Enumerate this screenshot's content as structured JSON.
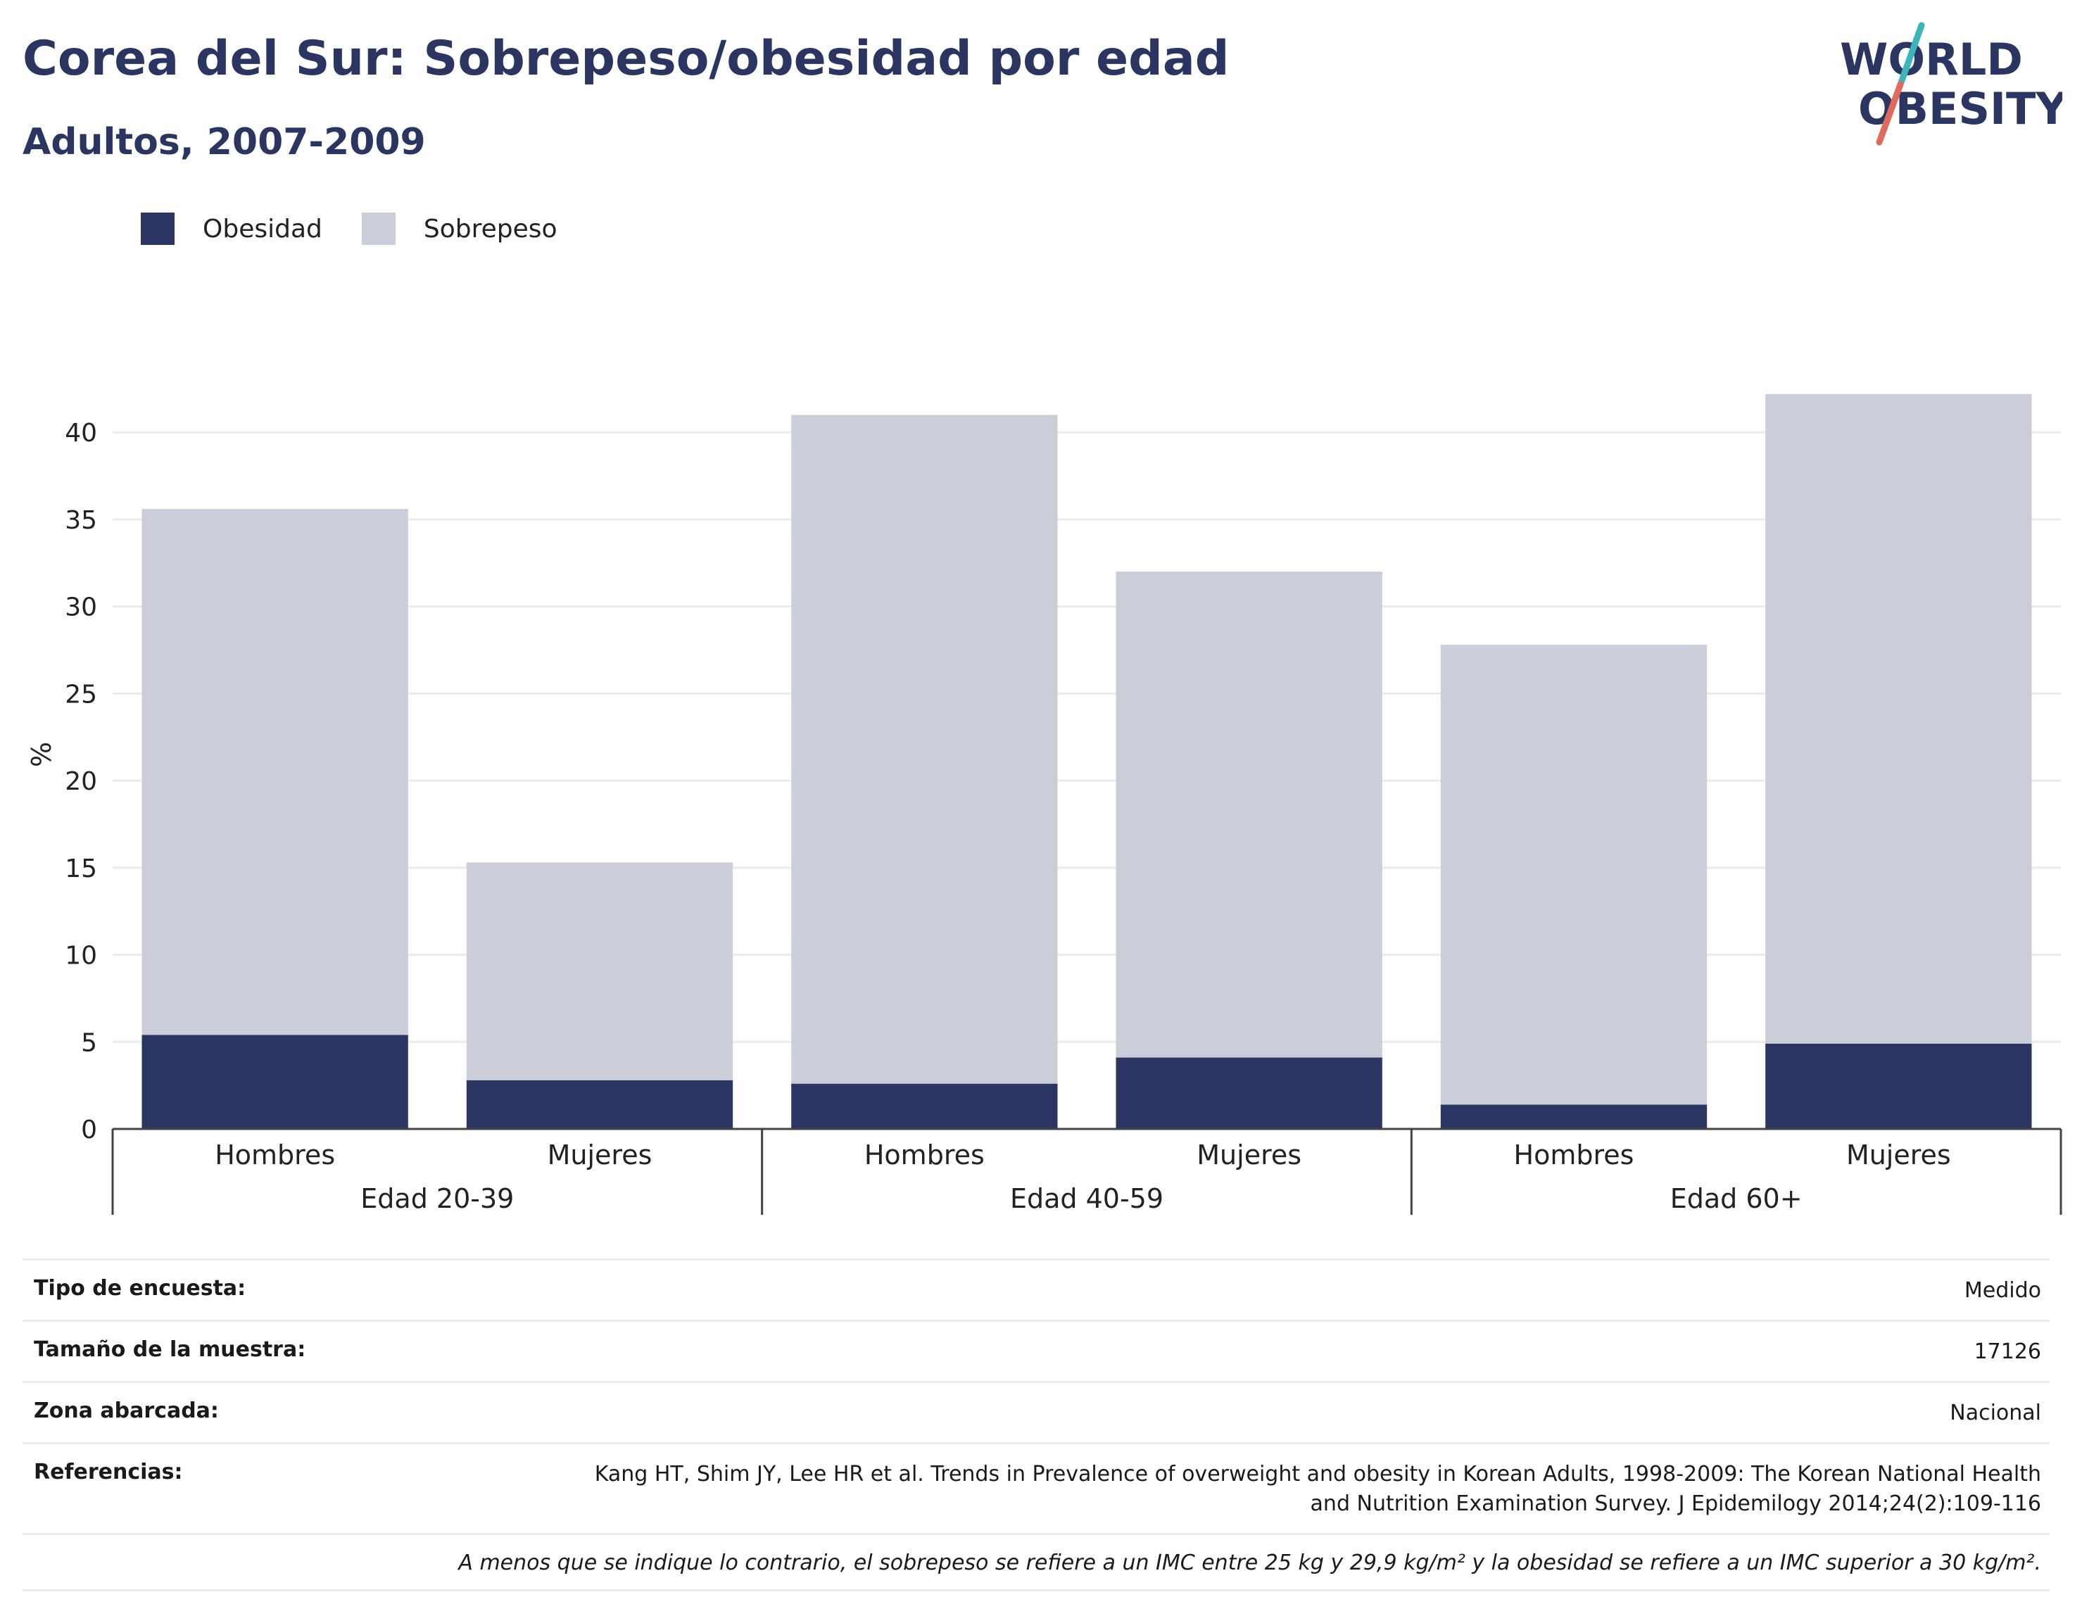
{
  "header": {
    "title": "Corea del Sur: Sobrepeso/obesidad por edad",
    "subtitle": "Adultos, 2007-2009"
  },
  "logo": {
    "line1": "WORLD",
    "line2": "OBESITY",
    "accent1": "#3bb5b8",
    "accent2": "#e26a5a"
  },
  "colors": {
    "obesity": "#2b3561",
    "overweight": "#cbcdd8",
    "grid": "#ebebef",
    "axis": "#444444"
  },
  "chart_data": {
    "type": "bar",
    "stacked": true,
    "ylabel": "%",
    "ylim": [
      0,
      43
    ],
    "yticks": [
      0,
      5,
      10,
      15,
      20,
      25,
      30,
      35,
      40
    ],
    "grid": true,
    "legend": "top-left",
    "groups": [
      {
        "label": "Edad 20-39",
        "categories": [
          "Hombres",
          "Mujeres"
        ]
      },
      {
        "label": "Edad 40-59",
        "categories": [
          "Hombres",
          "Mujeres"
        ]
      },
      {
        "label": "Edad 60+",
        "categories": [
          "Hombres",
          "Mujeres"
        ]
      }
    ],
    "series": [
      {
        "name": "Obesidad",
        "values": [
          5.4,
          2.8,
          2.6,
          4.1,
          1.4,
          4.9
        ]
      },
      {
        "name": "Sobrepeso",
        "values": [
          30.2,
          12.5,
          38.4,
          27.9,
          26.4,
          37.3
        ]
      }
    ]
  },
  "meta": {
    "survey_type_label": "Tipo de encuesta:",
    "survey_type_value": "Medido",
    "sample_size_label": "Tamaño de la muestra:",
    "sample_size_value": "17126",
    "area_label": "Zona abarcada:",
    "area_value": "Nacional",
    "references_label": "Referencias:",
    "references_value": "Kang HT, Shim JY, Lee HR et al. Trends in Prevalence of overweight and obesity in Korean Adults, 1998-2009: The Korean National Health and Nutrition Examination Survey. J Epidemilogy 2014;24(2):109-116",
    "note": "A menos que se indique lo contrario, el sobrepeso se refiere a un IMC entre 25 kg y 29,9 kg/m² y la obesidad se refiere a un IMC superior a 30 kg/m²."
  }
}
